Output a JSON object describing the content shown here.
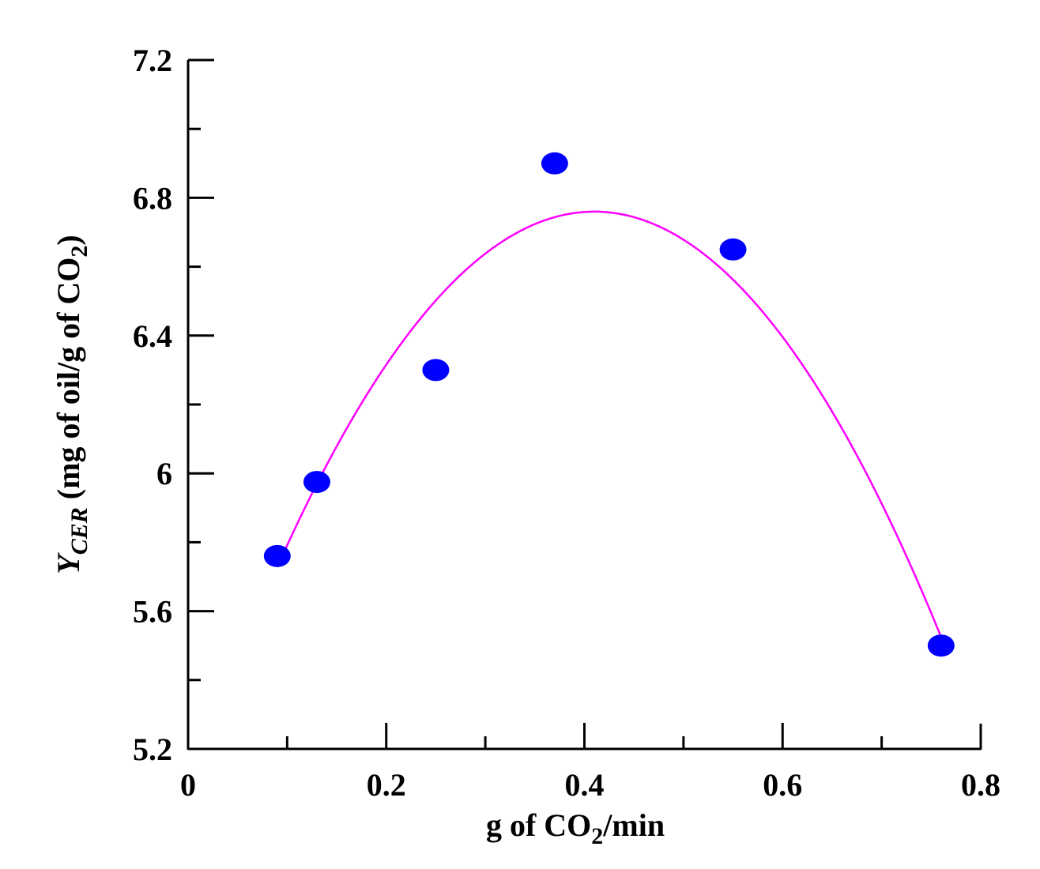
{
  "chart_data": {
    "type": "scatter",
    "x": [
      0.09,
      0.13,
      0.25,
      0.37,
      0.55,
      0.76
    ],
    "y": [
      5.76,
      5.975,
      6.3,
      6.9,
      6.65,
      5.5
    ],
    "fit": {
      "type": "quadratic",
      "x_range": [
        0.09,
        0.76
      ],
      "vertex_x": 0.41,
      "vertex_y": 6.76,
      "curvature": -10.08
    },
    "xlim": [
      0,
      0.8
    ],
    "ylim": [
      5.2,
      7.2
    ],
    "x_major_ticks": [
      0,
      0.2,
      0.4,
      0.6,
      0.8
    ],
    "x_tick_labels": [
      "0",
      "0.2",
      "0.4",
      "0.6",
      "0.8"
    ],
    "x_minor_ticks": [
      0.1,
      0.3,
      0.5,
      0.7
    ],
    "y_major_ticks": [
      5.2,
      5.6,
      6.0,
      6.4,
      6.8,
      7.2
    ],
    "y_tick_labels": [
      "5.2",
      "5.6",
      "6",
      "6.4",
      "6.8",
      "7.2"
    ],
    "y_minor_ticks": [
      5.4,
      5.8,
      6.2,
      6.6,
      7.0
    ],
    "xlabel": {
      "pre": "g of CO",
      "sub": "2",
      "post": "/min"
    },
    "ylabel": {
      "main": "Y",
      "sub": "CER",
      "mid": " (mg of oil/g of CO",
      "sub2": "2",
      "post": ")"
    },
    "marker_color": "#0000ff",
    "fit_color": "#ff00ff",
    "grid": false
  }
}
